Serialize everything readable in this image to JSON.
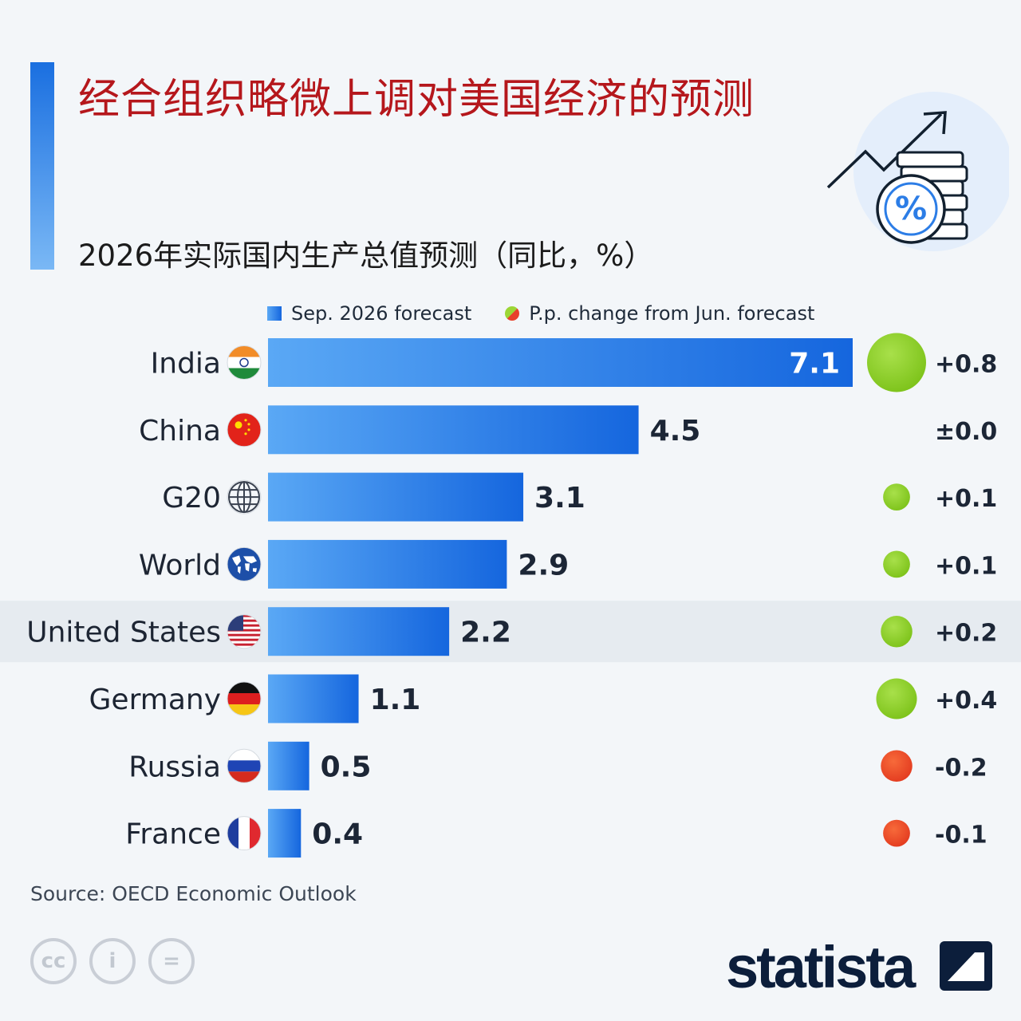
{
  "title": "经合组织略微上调对美国经济的预测",
  "subtitle": "2026年实际国内生产总值预测（同比，%）",
  "legend": {
    "bar_label": "Sep. 2026 forecast",
    "dot_label": "P.p. change from Jun. forecast"
  },
  "source": "Source: OECD Economic Outlook",
  "brand": "statista",
  "license_icons": [
    "cc-icon",
    "attribution-icon",
    "no-derivatives-icon"
  ],
  "colors": {
    "title": "#b5171c",
    "bar_start": "#5aa8f5",
    "bar_end": "#1566de",
    "positive_change": "#9cd636",
    "negative_change": "#e8412b",
    "highlight_row": "#e6ebf0"
  },
  "chart_data": {
    "type": "bar",
    "orientation": "horizontal",
    "categories": [
      "India",
      "China",
      "G20",
      "World",
      "United States",
      "Germany",
      "Russia",
      "France"
    ],
    "flag_icons": [
      "india-flag-icon",
      "china-flag-icon",
      "globe-icon",
      "world-map-icon",
      "us-flag-icon",
      "germany-flag-icon",
      "russia-flag-icon",
      "france-flag-icon"
    ],
    "series": [
      {
        "name": "Sep. 2026 forecast",
        "values": [
          7.1,
          4.5,
          3.1,
          2.9,
          2.2,
          1.1,
          0.5,
          0.4
        ]
      },
      {
        "name": "P.p. change from Jun. forecast",
        "values": [
          0.8,
          0.0,
          0.1,
          0.1,
          0.2,
          0.4,
          -0.2,
          -0.1
        ],
        "labels": [
          "+0.8",
          "±0.0",
          "+0.1",
          "+0.1",
          "+0.2",
          "+0.4",
          "-0.2",
          "-0.1"
        ]
      }
    ],
    "value_labels": [
      "7.1",
      "4.5",
      "3.1",
      "2.9",
      "2.2",
      "1.1",
      "0.5",
      "0.4"
    ],
    "highlighted_category": "United States",
    "xlim": [
      0,
      7.1
    ],
    "grid": false,
    "legend_position": "top"
  }
}
